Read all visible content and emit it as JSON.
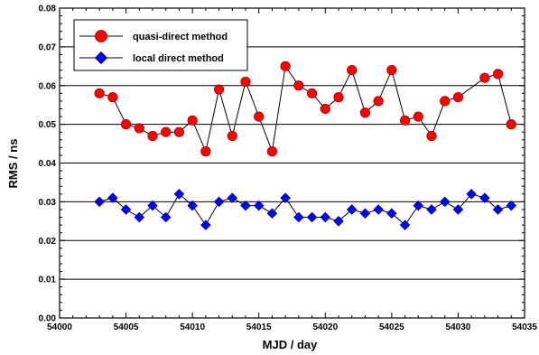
{
  "chart_data": {
    "type": "line",
    "title": "",
    "xlabel": "MJD  /  day",
    "ylabel": "RMS  /  ns",
    "xlim": [
      54000,
      54035
    ],
    "ylim": [
      0.0,
      0.08
    ],
    "xticks": [
      "54000",
      "54005",
      "54010",
      "54015",
      "54020",
      "54025",
      "54030",
      "54035"
    ],
    "yticks": [
      "0.00",
      "0.01",
      "0.02",
      "0.03",
      "0.04",
      "0.05",
      "0.06",
      "0.07",
      "0.08"
    ],
    "grid": "horizontal",
    "legend_position": "top-left",
    "series": [
      {
        "name": "quasi-direct method",
        "marker": "circle",
        "color": "#ff0000",
        "x": [
          54003,
          54004,
          54005,
          54006,
          54007,
          54008,
          54009,
          54010,
          54011,
          54012,
          54013,
          54014,
          54015,
          54016,
          54017,
          54018,
          54019,
          54020,
          54021,
          54022,
          54023,
          54024,
          54025,
          54026,
          54027,
          54028,
          54029,
          54030,
          54032,
          54033,
          54034
        ],
        "y": [
          0.058,
          0.057,
          0.05,
          0.049,
          0.047,
          0.048,
          0.048,
          0.051,
          0.043,
          0.059,
          0.047,
          0.061,
          0.052,
          0.043,
          0.065,
          0.06,
          0.058,
          0.054,
          0.057,
          0.064,
          0.053,
          0.056,
          0.064,
          0.051,
          0.052,
          0.047,
          0.056,
          0.057,
          0.062,
          0.063,
          0.05
        ]
      },
      {
        "name": "local direct method",
        "marker": "diamond",
        "color": "#0000ff",
        "x": [
          54003,
          54004,
          54005,
          54006,
          54007,
          54008,
          54009,
          54010,
          54011,
          54012,
          54013,
          54014,
          54015,
          54016,
          54017,
          54018,
          54019,
          54020,
          54021,
          54022,
          54023,
          54024,
          54025,
          54026,
          54027,
          54028,
          54029,
          54030,
          54031,
          54032,
          54033,
          54034
        ],
        "y": [
          0.03,
          0.031,
          0.028,
          0.026,
          0.029,
          0.026,
          0.032,
          0.029,
          0.024,
          0.03,
          0.031,
          0.029,
          0.029,
          0.027,
          0.031,
          0.026,
          0.026,
          0.026,
          0.025,
          0.028,
          0.027,
          0.028,
          0.027,
          0.024,
          0.029,
          0.028,
          0.03,
          0.028,
          0.032,
          0.031,
          0.028,
          0.029
        ]
      }
    ]
  }
}
